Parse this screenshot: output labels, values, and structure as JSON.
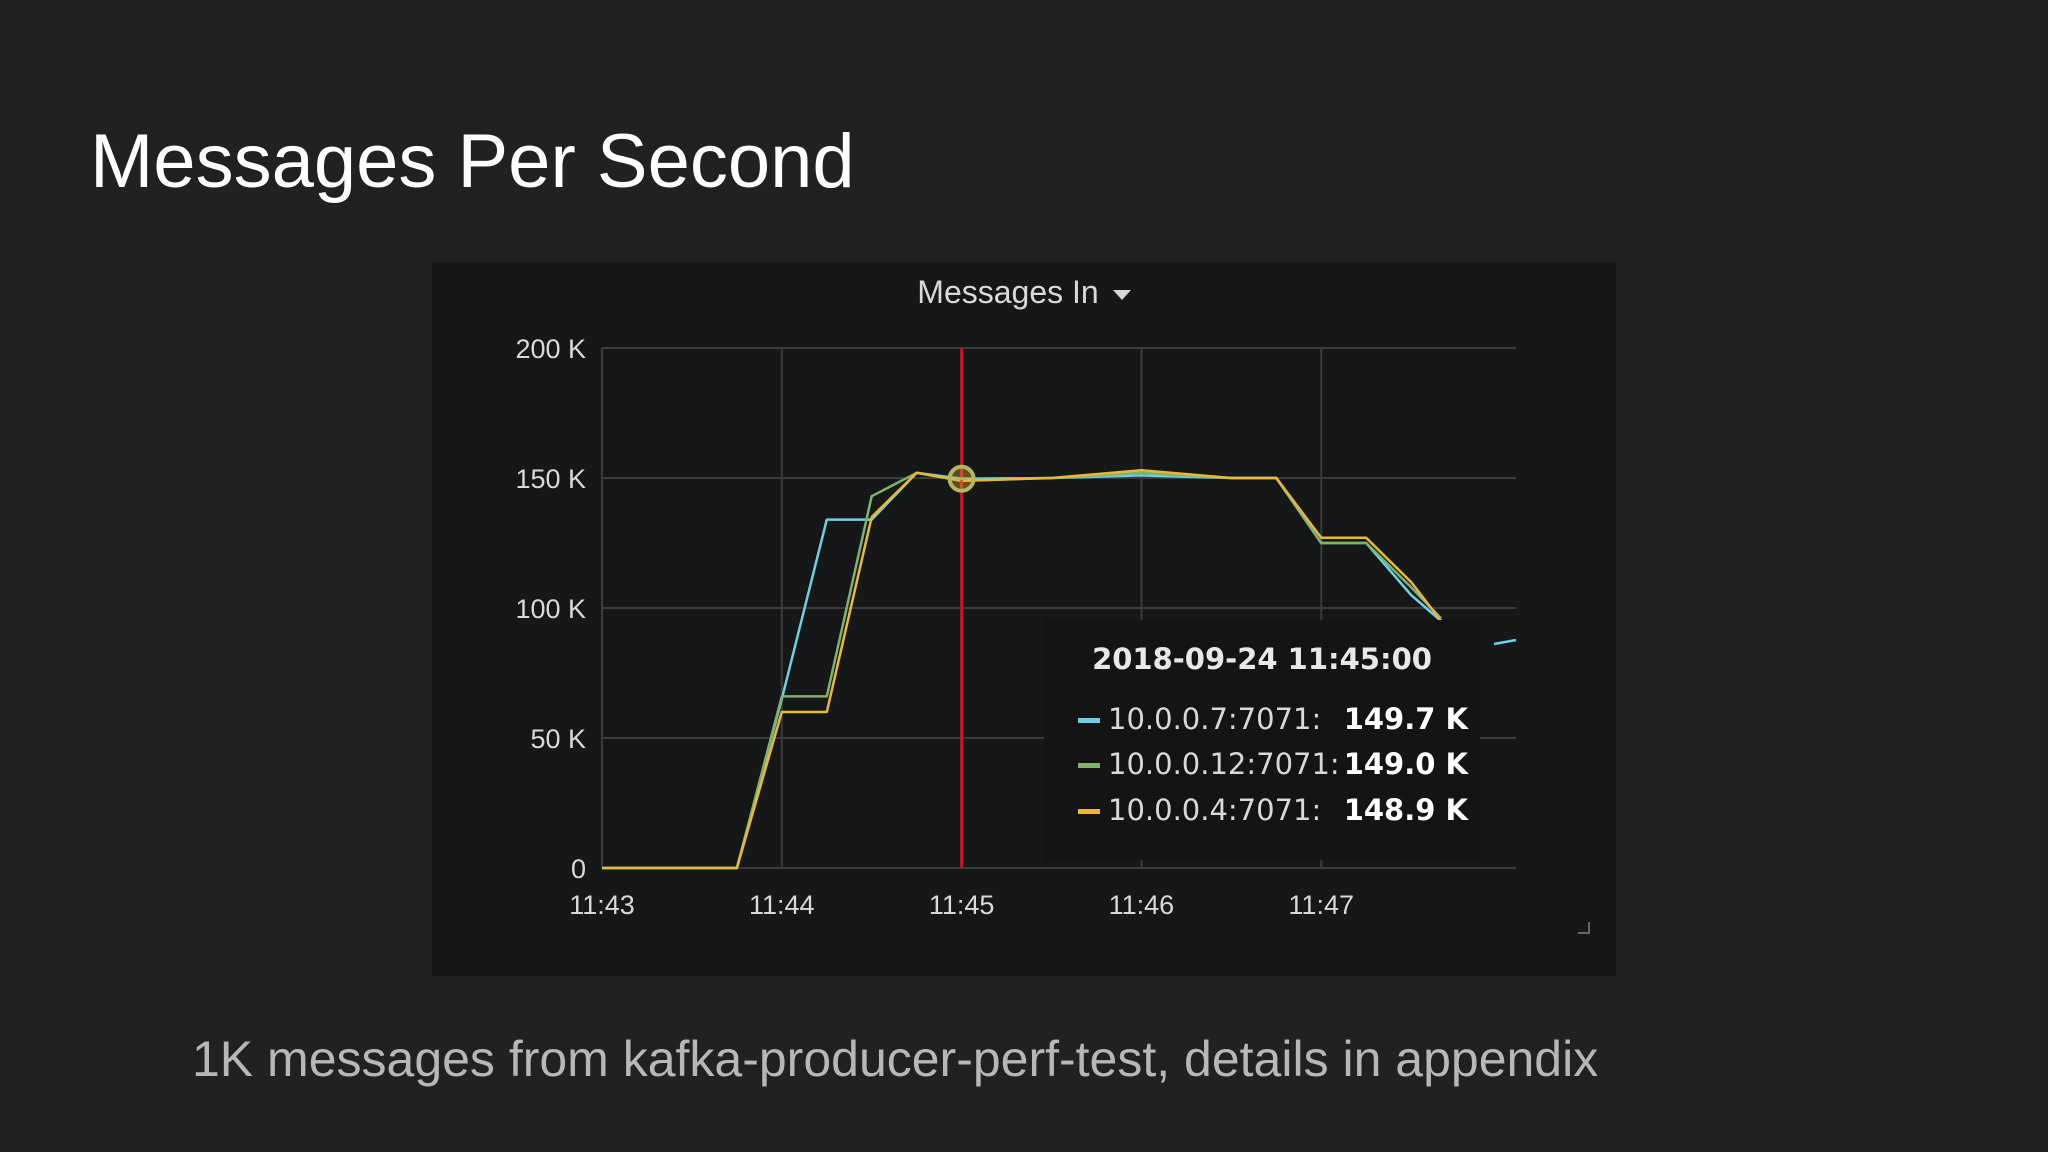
{
  "slide": {
    "title": "Messages Per Second",
    "caption": "1K messages from kafka-producer-perf-test, details in appendix"
  },
  "panel": {
    "title": "Messages In",
    "menu_icon": "caret-down-icon"
  },
  "chart_data": {
    "type": "line",
    "title": "Messages In",
    "xlabel": "",
    "ylabel": "",
    "x_ticks": [
      "11:43",
      "11:44",
      "11:45",
      "11:46",
      "11:47"
    ],
    "y_ticks": [
      "0",
      "50 K",
      "100 K",
      "150 K",
      "200 K"
    ],
    "xlim": [
      "11:43:00",
      "11:48:05"
    ],
    "ylim": [
      0,
      200000
    ],
    "grid": true,
    "cursor_time": "11:45:00",
    "series": [
      {
        "name": "10.0.0.7:7071",
        "color": "#6ed0e0",
        "x": [
          "11:43:00",
          "11:43:45",
          "11:44:00",
          "11:44:15",
          "11:44:30",
          "11:44:45",
          "11:45:00",
          "11:45:30",
          "11:46:00",
          "11:46:30",
          "11:46:45",
          "11:47:00",
          "11:47:15",
          "11:47:30",
          "11:47:40"
        ],
        "y": [
          0,
          0,
          65000,
          134000,
          134000,
          152000,
          149700,
          150000,
          151000,
          150000,
          150000,
          125000,
          125000,
          105000,
          95000
        ]
      },
      {
        "name": "10.0.0.12:7071",
        "color": "#7eb26d",
        "x": [
          "11:43:00",
          "11:43:45",
          "11:44:00",
          "11:44:15",
          "11:44:30",
          "11:44:45",
          "11:45:00",
          "11:45:30",
          "11:46:00",
          "11:46:30",
          "11:46:45",
          "11:47:00",
          "11:47:15",
          "11:47:30",
          "11:47:40"
        ],
        "y": [
          0,
          0,
          66000,
          66000,
          143000,
          152000,
          149000,
          150000,
          152000,
          150000,
          150000,
          125000,
          125000,
          108000,
          96000
        ]
      },
      {
        "name": "10.0.0.4:7071",
        "color": "#eab839",
        "x": [
          "11:43:00",
          "11:43:45",
          "11:44:00",
          "11:44:15",
          "11:44:30",
          "11:44:45",
          "11:45:00",
          "11:45:30",
          "11:46:00",
          "11:46:30",
          "11:46:45",
          "11:47:00",
          "11:47:15",
          "11:47:30",
          "11:47:40"
        ],
        "y": [
          0,
          0,
          60000,
          60000,
          135000,
          152000,
          148900,
          150000,
          153000,
          150000,
          150000,
          127000,
          127000,
          110000,
          95000
        ]
      }
    ],
    "tooltip": {
      "time": "2018-09-24 11:45:00",
      "rows": [
        {
          "label": "10.0.0.7:7071:",
          "value": "149.7 K",
          "color": "#6ed0e0"
        },
        {
          "label": "10.0.0.12:7071:",
          "value": "149.0 K",
          "color": "#7eb26d"
        },
        {
          "label": "10.0.0.4:7071:",
          "value": "148.9 K",
          "color": "#eab839"
        }
      ]
    }
  }
}
